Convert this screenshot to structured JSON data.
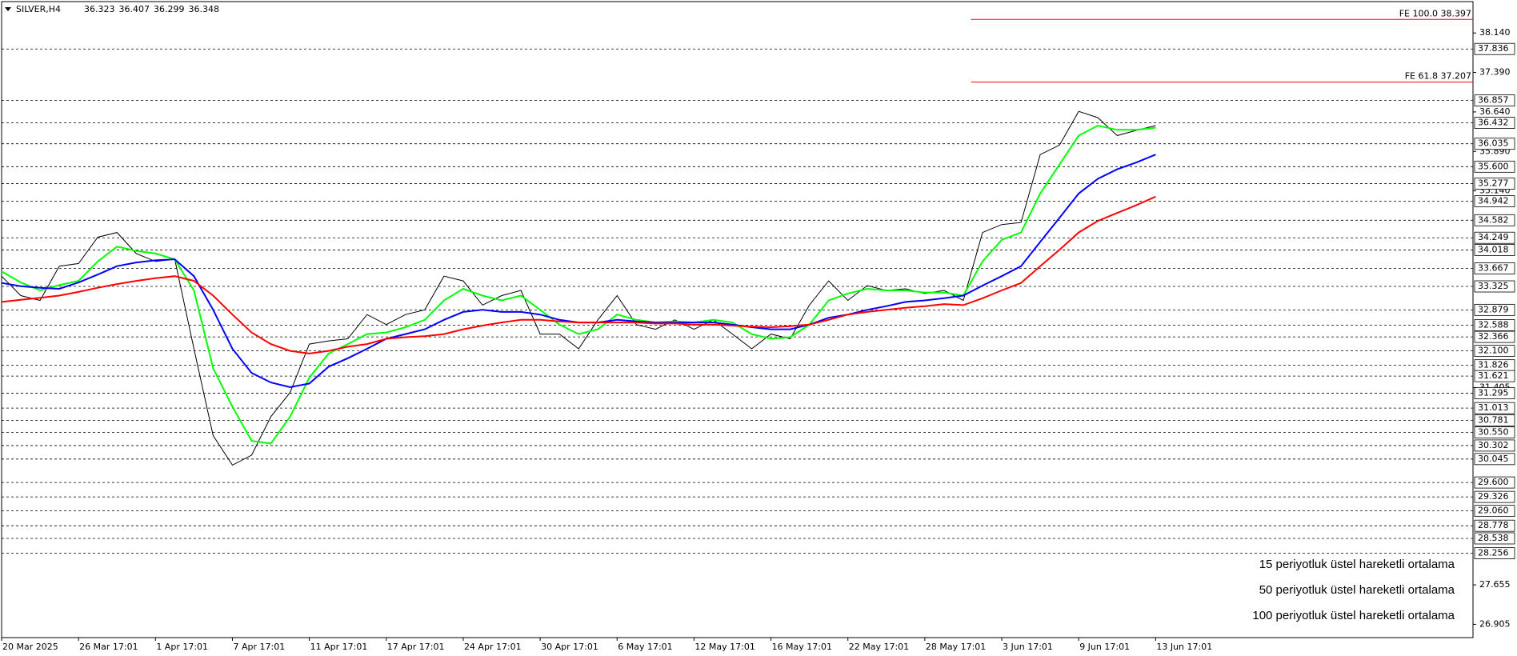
{
  "chart_data": {
    "type": "line",
    "symbol": "SILVER,H4",
    "ohlc": [
      36.323,
      36.407,
      36.299,
      36.348
    ],
    "x": [
      0,
      1,
      2,
      3,
      4,
      5,
      6,
      7,
      8,
      9,
      10,
      11,
      12,
      13,
      14,
      15,
      16,
      17,
      18,
      19,
      20,
      21,
      22,
      23,
      24,
      25,
      26,
      27,
      28,
      29,
      30,
      31,
      32,
      33,
      34,
      35,
      36,
      37,
      38,
      39,
      40,
      41,
      42,
      43,
      44,
      45,
      46,
      47,
      48,
      49,
      50,
      51,
      52,
      53,
      54,
      55,
      56,
      57,
      58,
      59,
      60
    ],
    "xlim": [
      0,
      76.5
    ],
    "xticks": [
      {
        "value": 0,
        "label": "20 Mar 2025"
      },
      {
        "value": 4,
        "label": "26 Mar 17:01"
      },
      {
        "value": 8,
        "label": "1 Apr 17:01"
      },
      {
        "value": 12,
        "label": "7 Apr 17:01"
      },
      {
        "value": 16,
        "label": "11 Apr 17:01"
      },
      {
        "value": 20,
        "label": "17 Apr 17:01"
      },
      {
        "value": 24,
        "label": "24 Apr 17:01"
      },
      {
        "value": 28,
        "label": "30 Apr 17:01"
      },
      {
        "value": 32,
        "label": "6 May 17:01"
      },
      {
        "value": 36,
        "label": "12 May 17:01"
      },
      {
        "value": 40,
        "label": "16 May 17:01"
      },
      {
        "value": 44,
        "label": "22 May 17:01"
      },
      {
        "value": 48,
        "label": "28 May 17:01"
      },
      {
        "value": 52,
        "label": "3 Jun 17:01"
      },
      {
        "value": 56,
        "label": "9 Jun 17:01"
      },
      {
        "value": 60,
        "label": "13 Jun 17:01"
      }
    ],
    "ylim": [
      26.653,
      38.736
    ],
    "yticks": [
      {
        "value": 38.14,
        "label": "38.140"
      },
      {
        "value": 37.39,
        "label": "37.390"
      },
      {
        "value": 36.64,
        "label": "36.640"
      },
      {
        "value": 35.89,
        "label": "35.890"
      },
      {
        "value": 35.14,
        "label": "35.140"
      },
      31.405,
      27.655,
      26.905
    ],
    "price": {
      "color": "#000000",
      "values": [
        33.52,
        33.15,
        33.06,
        33.71,
        33.76,
        34.26,
        34.35,
        33.95,
        33.8,
        33.84,
        32.14,
        30.49,
        29.93,
        30.12,
        30.85,
        31.31,
        32.23,
        32.29,
        32.33,
        32.79,
        32.6,
        32.79,
        32.88,
        33.52,
        33.43,
        32.97,
        33.15,
        33.25,
        32.42,
        32.42,
        32.14,
        32.69,
        33.15,
        32.6,
        32.51,
        32.69,
        32.51,
        32.69,
        32.42,
        32.14,
        32.42,
        32.33,
        32.97,
        33.43,
        33.06,
        33.34,
        33.25,
        33.28,
        33.19,
        33.25,
        33.06,
        34.35,
        34.5,
        34.54,
        35.83,
        36.01,
        36.65,
        36.53,
        36.19,
        36.29,
        36.38
      ]
    },
    "series": [
      {
        "name": "15 periyotluk üstel hareketli ortalama",
        "color": "#00ff00",
        "values": [
          33.61,
          33.4,
          33.25,
          33.35,
          33.43,
          33.8,
          34.08,
          34.0,
          33.95,
          33.84,
          33.25,
          31.77,
          31.04,
          30.39,
          30.34,
          30.85,
          31.59,
          32.05,
          32.23,
          32.42,
          32.45,
          32.55,
          32.69,
          33.06,
          33.28,
          33.15,
          33.06,
          33.15,
          32.88,
          32.6,
          32.42,
          32.51,
          32.79,
          32.69,
          32.64,
          32.66,
          32.64,
          32.69,
          32.64,
          32.42,
          32.33,
          32.36,
          32.6,
          33.06,
          33.19,
          33.28,
          33.25,
          33.25,
          33.21,
          33.21,
          33.15,
          33.8,
          34.21,
          34.35,
          35.09,
          35.64,
          36.19,
          36.38,
          36.3,
          36.3,
          36.34
        ]
      },
      {
        "name": "50 periyotluk üstel hareketli ortalama",
        "color": "#0000ff",
        "values": [
          33.39,
          33.33,
          33.3,
          33.28,
          33.4,
          33.55,
          33.71,
          33.78,
          33.82,
          33.84,
          33.52,
          32.88,
          32.14,
          31.68,
          31.5,
          31.41,
          31.48,
          31.8,
          31.96,
          32.14,
          32.33,
          32.42,
          32.51,
          32.69,
          32.84,
          32.88,
          32.84,
          32.84,
          32.79,
          32.69,
          32.64,
          32.64,
          32.69,
          32.66,
          32.64,
          32.64,
          32.64,
          32.64,
          32.6,
          32.55,
          32.51,
          32.51,
          32.6,
          32.73,
          32.79,
          32.88,
          32.95,
          33.03,
          33.06,
          33.1,
          33.15,
          33.34,
          33.52,
          33.71,
          34.17,
          34.63,
          35.09,
          35.37,
          35.55,
          35.68,
          35.83
        ]
      },
      {
        "name": "100 periyotluk üstel hareketli ortalama",
        "color": "#ff0000",
        "values": [
          33.03,
          33.07,
          33.11,
          33.15,
          33.22,
          33.3,
          33.37,
          33.43,
          33.48,
          33.52,
          33.43,
          33.15,
          32.79,
          32.45,
          32.23,
          32.1,
          32.05,
          32.1,
          32.18,
          32.23,
          32.33,
          32.36,
          32.38,
          32.42,
          32.51,
          32.58,
          32.64,
          32.69,
          32.69,
          32.66,
          32.64,
          32.64,
          32.64,
          32.64,
          32.62,
          32.62,
          32.6,
          32.6,
          32.58,
          32.56,
          32.55,
          32.57,
          32.6,
          32.69,
          32.79,
          32.84,
          32.88,
          32.92,
          32.95,
          32.99,
          32.97,
          33.1,
          33.25,
          33.39,
          33.71,
          34.02,
          34.35,
          34.57,
          34.72,
          34.87,
          35.03
        ]
      }
    ],
    "levels": [
      37.836,
      36.857,
      36.432,
      36.035,
      {
        "value": 35.6,
        "label": "35.600"
      },
      35.277,
      34.942,
      34.582,
      34.249,
      34.018,
      33.667,
      33.325,
      32.879,
      32.588,
      32.366,
      {
        "value": 32.1,
        "label": "32.100"
      },
      31.826,
      31.621,
      31.295,
      31.013,
      30.781,
      {
        "value": 30.55,
        "label": "30.550"
      },
      30.302,
      30.045,
      {
        "value": 29.6,
        "label": "29.600"
      },
      29.326,
      {
        "value": 29.06,
        "label": "29.060"
      },
      28.778,
      28.538,
      28.256
    ],
    "fibo": {
      "color": "#ff0000",
      "x_start": 50.4,
      "lines": [
        {
          "value": 38.397,
          "label": "FE 100.0 38.397"
        },
        {
          "value": 37.207,
          "label": "FE 61.8 37.207"
        }
      ]
    }
  }
}
